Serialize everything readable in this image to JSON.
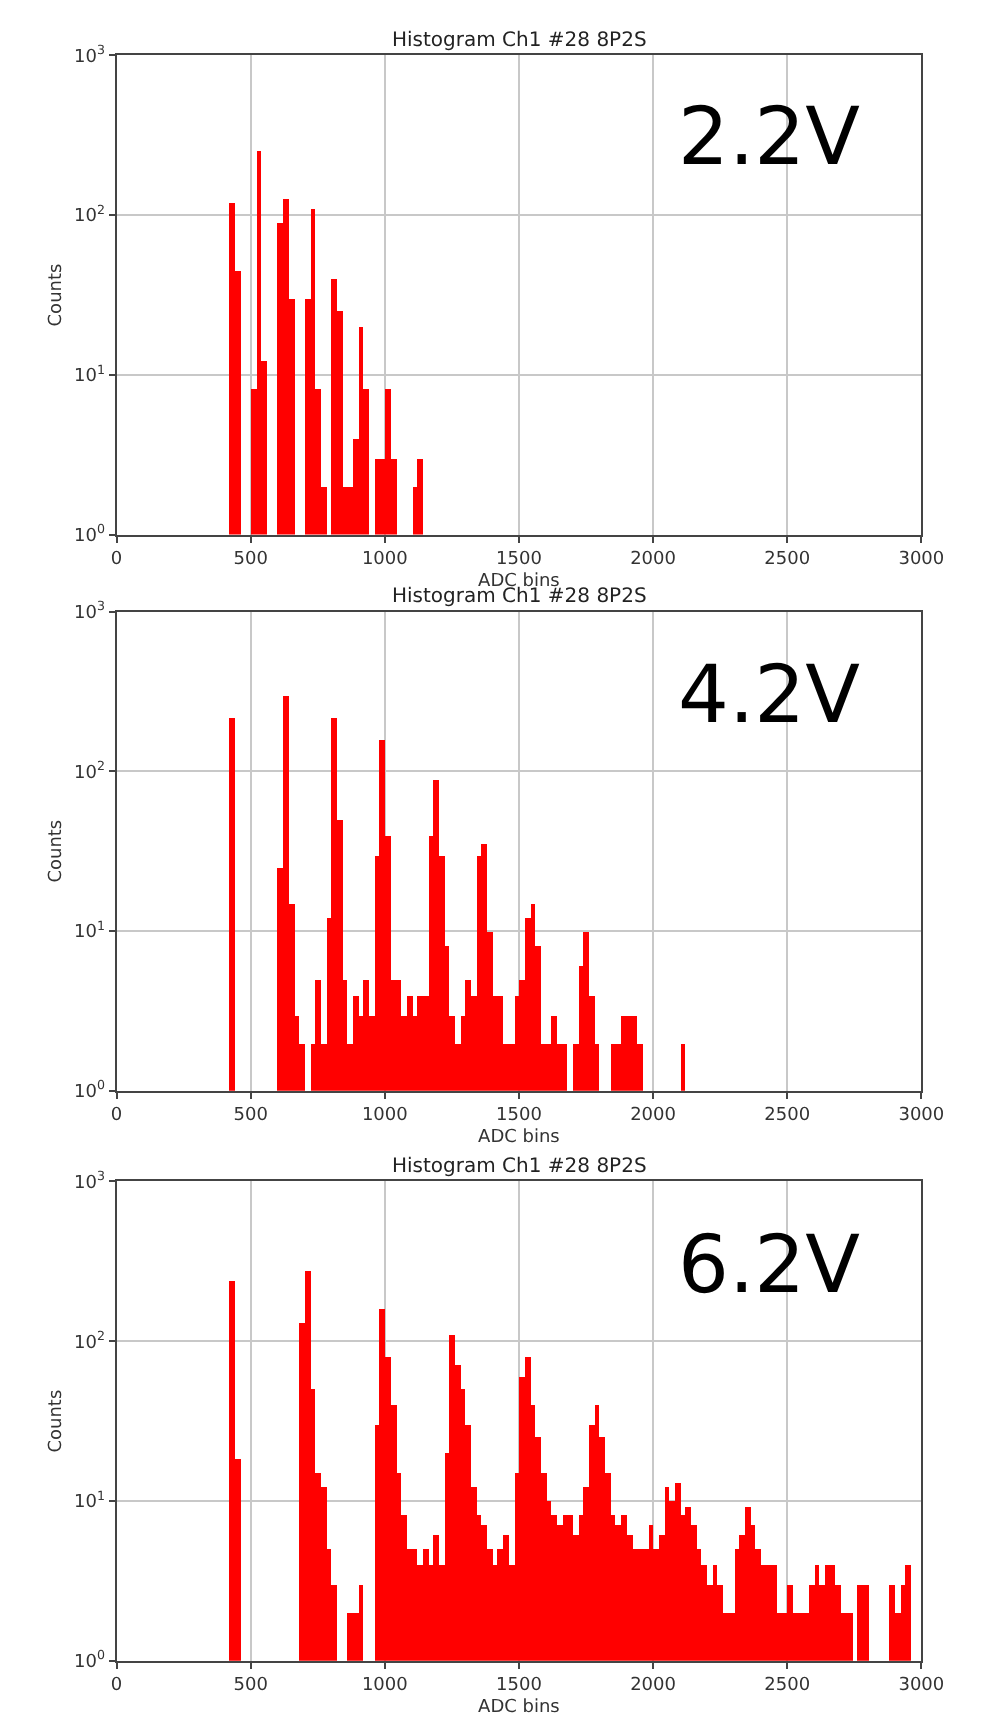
{
  "chart_data": [
    {
      "type": "histogram",
      "title": "Histogram Ch1 #28 8P2S",
      "xlabel": "ADC bins",
      "ylabel": "Counts",
      "color": "#ff0000",
      "log": true,
      "grid": true,
      "annotations": [
        "2.2V"
      ],
      "xlim": [
        0,
        3000
      ],
      "xticks": [
        0,
        500,
        1000,
        1500,
        2000,
        2500,
        3000
      ],
      "ylim": [
        1,
        1000
      ],
      "yticks": [
        {
          "value": 1,
          "label": "10$^{0}$"
        },
        {
          "value": 10,
          "label": "10$^{1}$"
        },
        {
          "value": 100,
          "label": "10$^{2}$"
        },
        {
          "value": 1000,
          "label": "10$^{3}$"
        }
      ],
      "bins": [
        420,
        440,
        460,
        480,
        500,
        520,
        540,
        560,
        580,
        600,
        620,
        640,
        660,
        680,
        700,
        720,
        740,
        760,
        780,
        800,
        820,
        840,
        860,
        880,
        900,
        920,
        940,
        960,
        980,
        1000,
        1020,
        1040,
        1060,
        1080,
        1100,
        1120,
        1140
      ],
      "values": [
        120,
        45,
        null,
        null,
        8,
        250,
        12,
        null,
        null,
        90,
        125,
        30,
        null,
        null,
        30,
        110,
        8,
        2,
        null,
        40,
        25,
        2,
        2,
        4,
        20,
        8,
        null,
        3,
        3,
        8,
        3,
        null,
        null,
        null,
        2,
        3
      ]
    },
    {
      "type": "histogram",
      "title": "Histogram Ch1 #28 8P2S",
      "xlabel": "ADC bins",
      "ylabel": "Counts",
      "color": "#ff0000",
      "log": true,
      "grid": true,
      "annotations": [
        "4.2V"
      ],
      "xlim": [
        0,
        3000
      ],
      "xticks": [
        0,
        500,
        1000,
        1500,
        2000,
        2500,
        3000
      ],
      "ylim": [
        1,
        1000
      ],
      "yticks": [
        {
          "value": 1,
          "label": "10$^{0}$"
        },
        {
          "value": 10,
          "label": "10$^{1}$"
        },
        {
          "value": 100,
          "label": "10$^{2}$"
        },
        {
          "value": 1000,
          "label": "10$^{3}$"
        }
      ],
      "bins": [
        420,
        440,
        460,
        480,
        500,
        520,
        540,
        560,
        580,
        600,
        620,
        640,
        660,
        680,
        700,
        720,
        740,
        760,
        780,
        800,
        820,
        840,
        860,
        880,
        900,
        920,
        940,
        960,
        980,
        1000,
        1020,
        1040,
        1060,
        1080,
        1100,
        1120,
        1140,
        1160,
        1180,
        1200,
        1220,
        1240,
        1260,
        1280,
        1300,
        1320,
        1340,
        1360,
        1380,
        1400,
        1420,
        1440,
        1460,
        1480,
        1500,
        1520,
        1540,
        1560,
        1580,
        1600,
        1620,
        1640,
        1660,
        1680,
        1700,
        1720,
        1740,
        1760,
        1780,
        1800,
        1820,
        1840,
        1860,
        1880,
        1900,
        1920,
        1940,
        1960,
        1980,
        2000,
        2020,
        2040,
        2060,
        2080,
        2100,
        2120
      ],
      "values": [
        220,
        null,
        null,
        null,
        null,
        null,
        null,
        null,
        null,
        25,
        300,
        15,
        3,
        2,
        null,
        2,
        5,
        2,
        12,
        220,
        50,
        5,
        2,
        4,
        3,
        5,
        3,
        30,
        160,
        40,
        5,
        5,
        3,
        4,
        3,
        4,
        4,
        40,
        90,
        30,
        8,
        3,
        2,
        3,
        5,
        4,
        30,
        35,
        10,
        4,
        4,
        2,
        2,
        4,
        5,
        12,
        15,
        8,
        2,
        2,
        3,
        2,
        2,
        null,
        2,
        6,
        10,
        4,
        2,
        null,
        null,
        2,
        2,
        3,
        3,
        3,
        2,
        null,
        null,
        null,
        null,
        null,
        null,
        null,
        2
      ]
    },
    {
      "type": "histogram",
      "title": "Histogram Ch1 #28 8P2S",
      "xlabel": "ADC bins",
      "ylabel": "Counts",
      "color": "#ff0000",
      "log": true,
      "grid": true,
      "annotations": [
        "6.2V"
      ],
      "xlim": [
        0,
        3000
      ],
      "xticks": [
        0,
        500,
        1000,
        1500,
        2000,
        2500,
        3000
      ],
      "ylim": [
        1,
        1000
      ],
      "yticks": [
        {
          "value": 1,
          "label": "10$^{0}$"
        },
        {
          "value": 10,
          "label": "10$^{1}$"
        },
        {
          "value": 100,
          "label": "10$^{2}$"
        },
        {
          "value": 1000,
          "label": "10$^{3}$"
        }
      ],
      "bins": [
        420,
        440,
        460,
        480,
        500,
        520,
        540,
        560,
        580,
        600,
        620,
        640,
        660,
        680,
        700,
        720,
        740,
        760,
        780,
        800,
        820,
        840,
        860,
        880,
        900,
        920,
        940,
        960,
        980,
        1000,
        1020,
        1040,
        1060,
        1080,
        1100,
        1120,
        1140,
        1160,
        1180,
        1200,
        1220,
        1240,
        1260,
        1280,
        1300,
        1320,
        1340,
        1360,
        1380,
        1400,
        1420,
        1440,
        1460,
        1480,
        1500,
        1520,
        1540,
        1560,
        1580,
        1600,
        1620,
        1640,
        1660,
        1680,
        1700,
        1720,
        1740,
        1760,
        1780,
        1800,
        1820,
        1840,
        1860,
        1880,
        1900,
        1920,
        1940,
        1960,
        1980,
        2000,
        2020,
        2040,
        2060,
        2080,
        2100,
        2120,
        2140,
        2160,
        2180,
        2200,
        2220,
        2240,
        2260,
        2280,
        2300,
        2320,
        2340,
        2360,
        2380,
        2400,
        2420,
        2440,
        2460,
        2480,
        2500,
        2520,
        2540,
        2560,
        2580,
        2600,
        2620,
        2640,
        2660,
        2680,
        2700,
        2720,
        2740,
        2760,
        2780,
        2800,
        2820,
        2840,
        2860,
        2880,
        2900,
        2920,
        2940,
        2960
      ],
      "values": [
        240,
        18,
        null,
        null,
        null,
        null,
        null,
        null,
        null,
        null,
        null,
        null,
        null,
        130,
        270,
        50,
        15,
        12,
        5,
        3,
        null,
        null,
        2,
        2,
        3,
        null,
        null,
        30,
        160,
        80,
        40,
        15,
        8,
        5,
        5,
        4,
        5,
        4,
        6,
        4,
        20,
        110,
        70,
        50,
        30,
        12,
        8,
        7,
        5,
        4,
        5,
        6,
        4,
        15,
        60,
        80,
        40,
        25,
        15,
        10,
        8,
        7,
        8,
        8,
        6,
        8,
        12,
        30,
        40,
        25,
        15,
        8,
        7,
        8,
        6,
        5,
        5,
        5,
        7,
        5,
        6,
        12,
        10,
        13,
        8,
        9,
        7,
        5,
        4,
        3,
        4,
        3,
        2,
        2,
        5,
        6,
        9,
        7,
        5,
        4,
        4,
        4,
        2,
        2,
        3,
        2,
        2,
        2,
        3,
        4,
        3,
        4,
        4,
        3,
        2,
        2,
        null,
        3,
        3,
        null,
        null,
        null,
        null,
        3,
        2,
        3,
        4
      ]
    }
  ]
}
